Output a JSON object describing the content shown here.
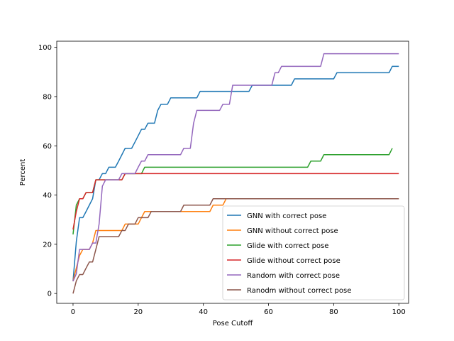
{
  "chart_data": {
    "type": "line",
    "title": "",
    "xlabel": "Pose Cutoff",
    "ylabel": "Percent",
    "xlim": [
      -5,
      103
    ],
    "ylim": [
      -4,
      102.5
    ],
    "xticks": [
      0,
      20,
      40,
      60,
      80,
      100
    ],
    "yticks": [
      0,
      20,
      40,
      60,
      80,
      100
    ],
    "grid": false,
    "legend_position": "lower right",
    "series": [
      {
        "name": "GNN with correct pose",
        "color": "#1f77b4",
        "points": [
          [
            0,
            5
          ],
          [
            1,
            21
          ],
          [
            2,
            30.8
          ],
          [
            3,
            30.8
          ],
          [
            4,
            33.3
          ],
          [
            5,
            35.9
          ],
          [
            6,
            38.5
          ],
          [
            7,
            46.2
          ],
          [
            8,
            46.2
          ],
          [
            9,
            48.7
          ],
          [
            10,
            48.7
          ],
          [
            11,
            51.3
          ],
          [
            13,
            51.3
          ],
          [
            14,
            53.8
          ],
          [
            15,
            56.4
          ],
          [
            16,
            59
          ],
          [
            18,
            59
          ],
          [
            19,
            61.5
          ],
          [
            20,
            64.1
          ],
          [
            21,
            66.7
          ],
          [
            22,
            66.7
          ],
          [
            23,
            69.2
          ],
          [
            25,
            69.2
          ],
          [
            26,
            74.4
          ],
          [
            27,
            76.9
          ],
          [
            29,
            76.9
          ],
          [
            30,
            79.5
          ],
          [
            38,
            79.5
          ],
          [
            39,
            82.1
          ],
          [
            54,
            82.1
          ],
          [
            55,
            84.6
          ],
          [
            67,
            84.6
          ],
          [
            68,
            87.2
          ],
          [
            80,
            87.2
          ],
          [
            81,
            89.7
          ],
          [
            97,
            89.7
          ],
          [
            98,
            92.3
          ],
          [
            100,
            92.3
          ]
        ]
      },
      {
        "name": "GNN without correct pose",
        "color": "#ff7f0e",
        "points": [
          [
            0,
            5
          ],
          [
            1,
            10.3
          ],
          [
            2,
            15.4
          ],
          [
            3,
            17.9
          ],
          [
            5,
            17.9
          ],
          [
            6,
            20.5
          ],
          [
            7,
            25.6
          ],
          [
            15,
            25.6
          ],
          [
            16,
            28.2
          ],
          [
            20,
            28.2
          ],
          [
            21,
            30.8
          ],
          [
            22,
            33.3
          ],
          [
            42,
            33.3
          ],
          [
            43,
            35.9
          ],
          [
            46,
            35.9
          ],
          [
            47,
            38.5
          ],
          [
            100,
            38.5
          ]
        ]
      },
      {
        "name": "Glide with correct pose",
        "color": "#2ca02c",
        "points": [
          [
            0,
            24
          ],
          [
            1,
            35.9
          ],
          [
            2,
            38.5
          ],
          [
            3,
            38.5
          ],
          [
            4,
            41
          ],
          [
            6,
            41
          ],
          [
            7,
            46.2
          ],
          [
            15,
            46.2
          ],
          [
            16,
            48.7
          ],
          [
            21,
            48.7
          ],
          [
            22,
            51.3
          ],
          [
            72,
            51.3
          ],
          [
            73,
            53.8
          ],
          [
            76,
            53.8
          ],
          [
            77,
            56.4
          ],
          [
            97,
            56.4
          ],
          [
            98,
            59
          ]
        ]
      },
      {
        "name": "Glide without correct pose",
        "color": "#d62728",
        "points": [
          [
            0,
            26
          ],
          [
            1,
            33.3
          ],
          [
            2,
            38.5
          ],
          [
            3,
            38.5
          ],
          [
            4,
            41
          ],
          [
            6,
            41
          ],
          [
            7,
            46.2
          ],
          [
            15,
            46.2
          ],
          [
            16,
            48.7
          ],
          [
            100,
            48.7
          ]
        ]
      },
      {
        "name": "Random with correct pose",
        "color": "#9467bd",
        "points": [
          [
            0,
            5
          ],
          [
            1,
            8
          ],
          [
            2,
            17.9
          ],
          [
            5,
            17.9
          ],
          [
            6,
            20.5
          ],
          [
            7,
            20.5
          ],
          [
            8,
            28.2
          ],
          [
            9,
            43.6
          ],
          [
            10,
            46.2
          ],
          [
            14,
            46.2
          ],
          [
            15,
            48.7
          ],
          [
            19,
            48.7
          ],
          [
            20,
            51.3
          ],
          [
            21,
            53.8
          ],
          [
            22,
            53.8
          ],
          [
            23,
            56.4
          ],
          [
            33,
            56.4
          ],
          [
            34,
            59
          ],
          [
            36,
            59
          ],
          [
            37,
            69.2
          ],
          [
            38,
            74.4
          ],
          [
            45,
            74.4
          ],
          [
            46,
            76.9
          ],
          [
            48,
            76.9
          ],
          [
            49,
            84.6
          ],
          [
            61,
            84.6
          ],
          [
            62,
            89.7
          ],
          [
            63,
            89.7
          ],
          [
            64,
            92.3
          ],
          [
            76,
            92.3
          ],
          [
            77,
            97.4
          ],
          [
            100,
            97.4
          ]
        ]
      },
      {
        "name": "Ranodm without correct pose",
        "color": "#8c564b",
        "points": [
          [
            0,
            0
          ],
          [
            1,
            5.1
          ],
          [
            2,
            7.7
          ],
          [
            3,
            7.7
          ],
          [
            4,
            10.3
          ],
          [
            5,
            12.8
          ],
          [
            6,
            12.8
          ],
          [
            7,
            17.9
          ],
          [
            8,
            23.1
          ],
          [
            14,
            23.1
          ],
          [
            15,
            25.6
          ],
          [
            16,
            25.6
          ],
          [
            17,
            28.2
          ],
          [
            19,
            28.2
          ],
          [
            20,
            30.8
          ],
          [
            23,
            30.8
          ],
          [
            24,
            33.3
          ],
          [
            33,
            33.3
          ],
          [
            34,
            35.9
          ],
          [
            42,
            35.9
          ],
          [
            43,
            38.5
          ],
          [
            100,
            38.5
          ]
        ]
      }
    ]
  }
}
